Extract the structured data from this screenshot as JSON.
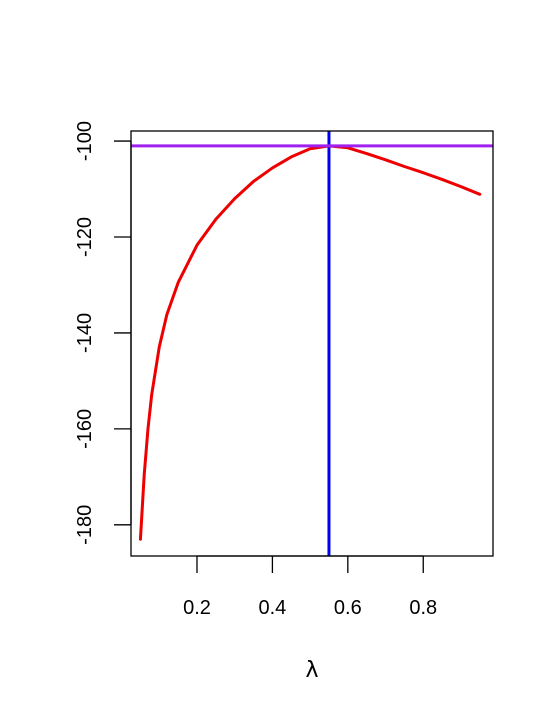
{
  "chart_data": {
    "type": "line",
    "title": "",
    "xlabel": "λ",
    "ylabel": "",
    "xlim": [
      0.025,
      0.985
    ],
    "ylim": [
      -186.5,
      -97.9
    ],
    "x_ticks": [
      {
        "value": 0.2,
        "label": "0.2"
      },
      {
        "value": 0.4,
        "label": "0.4"
      },
      {
        "value": 0.6,
        "label": "0.6"
      },
      {
        "value": 0.8,
        "label": "0.8"
      }
    ],
    "y_ticks": [
      {
        "value": -100,
        "label": "-100"
      },
      {
        "value": -120,
        "label": "-120"
      },
      {
        "value": -140,
        "label": "-140"
      },
      {
        "value": -160,
        "label": "-160"
      },
      {
        "value": -180,
        "label": "-180"
      }
    ],
    "grid": false,
    "series": [
      {
        "color": "#ee0000",
        "x": [
          0.05,
          0.06,
          0.07,
          0.08,
          0.1,
          0.12,
          0.15,
          0.2,
          0.25,
          0.3,
          0.35,
          0.4,
          0.45,
          0.5,
          0.55,
          0.6,
          0.65,
          0.7,
          0.75,
          0.8,
          0.85,
          0.9,
          0.95
        ],
        "y": [
          -183.0,
          -169.6,
          -160.0,
          -152.8,
          -142.9,
          -136.2,
          -129.5,
          -121.7,
          -116.3,
          -112.0,
          -108.4,
          -105.6,
          -103.3,
          -101.6,
          -101.0,
          -101.4,
          -102.6,
          -103.9,
          -105.3,
          -106.6,
          -108.0,
          -109.5,
          -111.1
        ]
      }
    ],
    "reference_lines": [
      {
        "orientation": "vertical",
        "x": 0.55,
        "color": "#0000ee"
      },
      {
        "orientation": "horizontal",
        "y": -101.0,
        "color": "#a020f0"
      }
    ]
  }
}
